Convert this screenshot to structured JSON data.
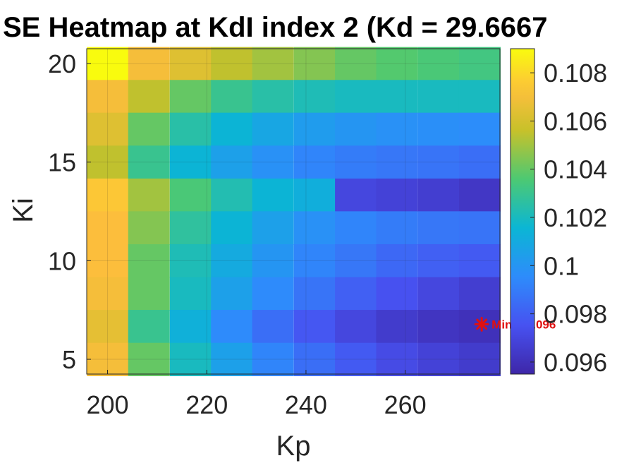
{
  "chart_data": {
    "type": "heatmap",
    "title": "SE Heatmap at KdI index 2 (Kd = 29.6667",
    "xlabel": "Kp",
    "ylabel": "Ki",
    "x_ticks": [
      "200",
      "220",
      "240",
      "260"
    ],
    "y_ticks": [
      "20",
      "15",
      "10",
      "5"
    ],
    "colorbar_ticks": [
      "0.108",
      "0.106",
      "0.104",
      "0.102",
      "0.1",
      "0.098",
      "0.096"
    ],
    "colorbar_range": [
      0.0955,
      0.109
    ],
    "colormap": "parula",
    "xlim": [
      195.8,
      279.1
    ],
    "ylim": [
      4.25,
      20.75
    ],
    "kp_values": [
      200,
      208.3,
      216.7,
      225,
      233.3,
      241.7,
      250,
      258.3,
      266.7,
      275
    ],
    "ki_values": [
      20,
      18.33,
      16.67,
      15,
      13.33,
      11.67,
      10,
      8.33,
      6.67,
      5
    ],
    "values": [
      [
        0.109,
        0.107,
        0.1063,
        0.1055,
        0.105,
        0.1045,
        0.104,
        0.1037,
        0.1035,
        0.1033
      ],
      [
        0.107,
        0.1055,
        0.104,
        0.103,
        0.1025,
        0.1022,
        0.102,
        0.102,
        0.102,
        0.102
      ],
      [
        0.1063,
        0.104,
        0.1025,
        0.1015,
        0.1008,
        0.1003,
        0.1,
        0.0998,
        0.0997,
        0.0996
      ],
      [
        0.1055,
        0.103,
        0.1015,
        0.1005,
        0.0998,
        0.0993,
        0.099,
        0.0988,
        0.0987,
        0.0985
      ],
      [
        0.1075,
        0.105,
        0.1035,
        0.1023,
        0.1015,
        0.1012,
        0.097,
        0.0968,
        0.0966,
        0.0963
      ],
      [
        0.1072,
        0.1045,
        0.1027,
        0.1015,
        0.1005,
        0.0998,
        0.0993,
        0.099,
        0.0988,
        0.0987
      ],
      [
        0.1072,
        0.104,
        0.1022,
        0.101,
        0.1,
        0.0993,
        0.0988,
        0.0983,
        0.098,
        0.0978
      ],
      [
        0.107,
        0.104,
        0.102,
        0.1005,
        0.0995,
        0.0987,
        0.098,
        0.0975,
        0.097,
        0.0966
      ],
      [
        0.1065,
        0.103,
        0.1013,
        0.0995,
        0.0985,
        0.0977,
        0.097,
        0.0965,
        0.0962,
        0.096
      ],
      [
        0.107,
        0.104,
        0.102,
        0.1005,
        0.0993,
        0.0985,
        0.0978,
        0.0972,
        0.0968,
        0.0965
      ]
    ],
    "marker": {
      "label": "Min = 0.096",
      "kp": 275,
      "ki": 6.67,
      "color": "#e01010"
    },
    "grid": true
  }
}
